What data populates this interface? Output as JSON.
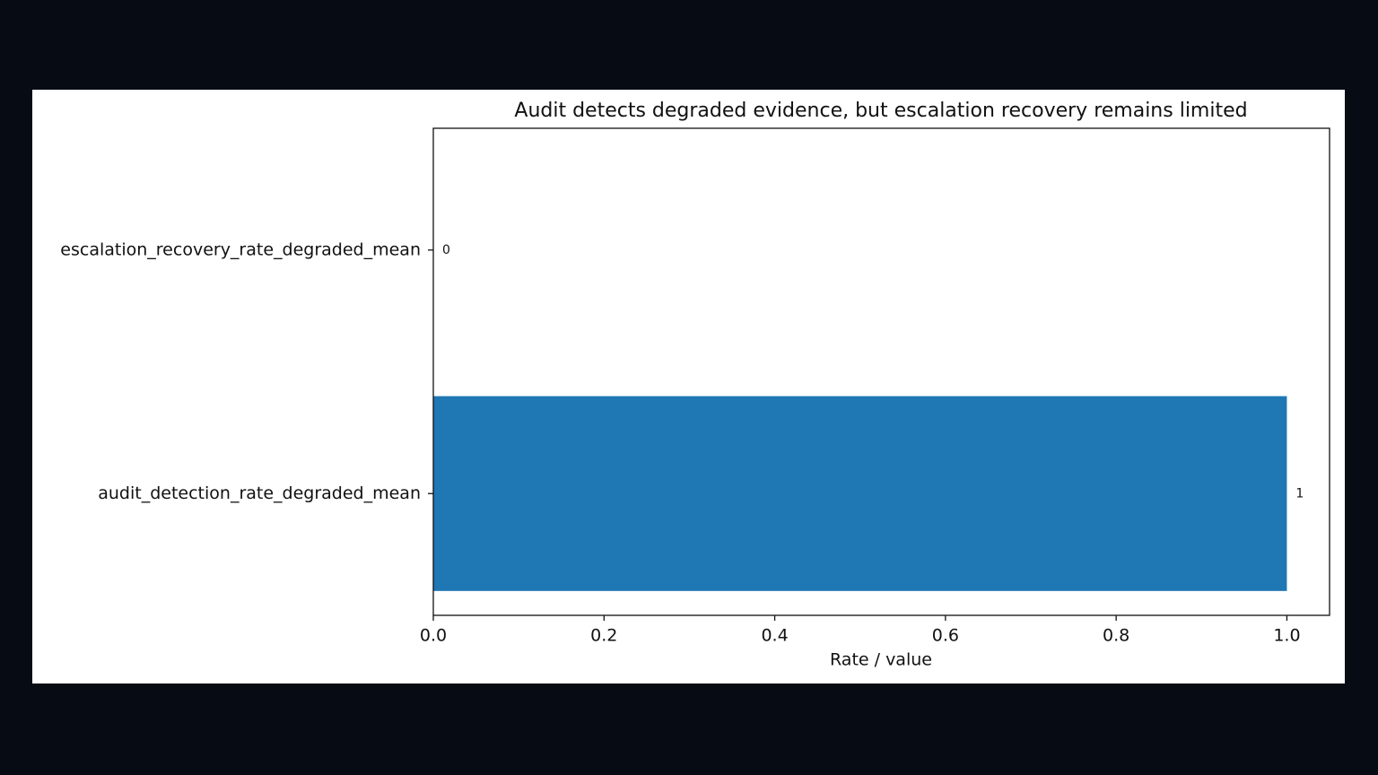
{
  "chart_data": {
    "type": "barh",
    "title": "Audit detects degraded evidence, but escalation recovery remains limited",
    "xlabel": "Rate / value",
    "categories": [
      "audit_detection_rate_degraded_mean",
      "escalation_recovery_rate_degraded_mean"
    ],
    "values": [
      1,
      0
    ],
    "color": "#1f77b4",
    "xlim": [
      0,
      1.05
    ],
    "xticks": [
      {
        "value": 0,
        "label": "0.0"
      },
      0.2,
      0.4,
      0.6,
      0.8,
      {
        "value": 1,
        "label": "1.0"
      }
    ],
    "grid": false
  }
}
